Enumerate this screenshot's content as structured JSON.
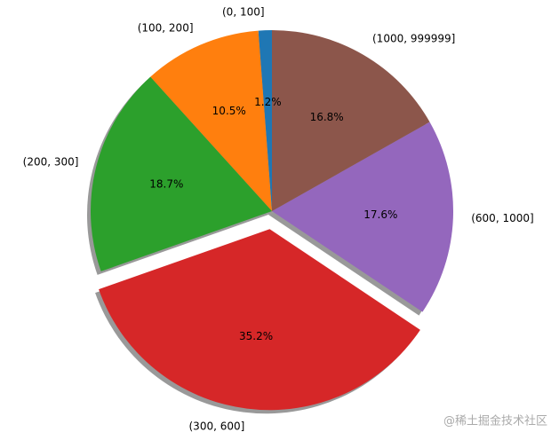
{
  "chart_data": {
    "type": "pie",
    "categories": [
      "(0, 100]",
      "(100, 200]",
      "(200, 300]",
      "(300, 600]",
      "(600, 1000]",
      "(1000, 999999]"
    ],
    "values": [
      1.2,
      10.5,
      18.7,
      35.2,
      17.6,
      16.8
    ],
    "value_labels": [
      "1.2%",
      "10.5%",
      "18.7%",
      "35.2%",
      "17.6%",
      "16.8%"
    ],
    "colors": [
      "#1f77b4",
      "#ff7f0e",
      "#2ca02c",
      "#d62728",
      "#9467bd",
      "#8c564b"
    ],
    "explode": [
      0,
      0,
      0,
      0.1,
      0,
      0
    ],
    "start_angle": 90,
    "shadow": true
  },
  "watermark": "@稀土掘金技术社区"
}
